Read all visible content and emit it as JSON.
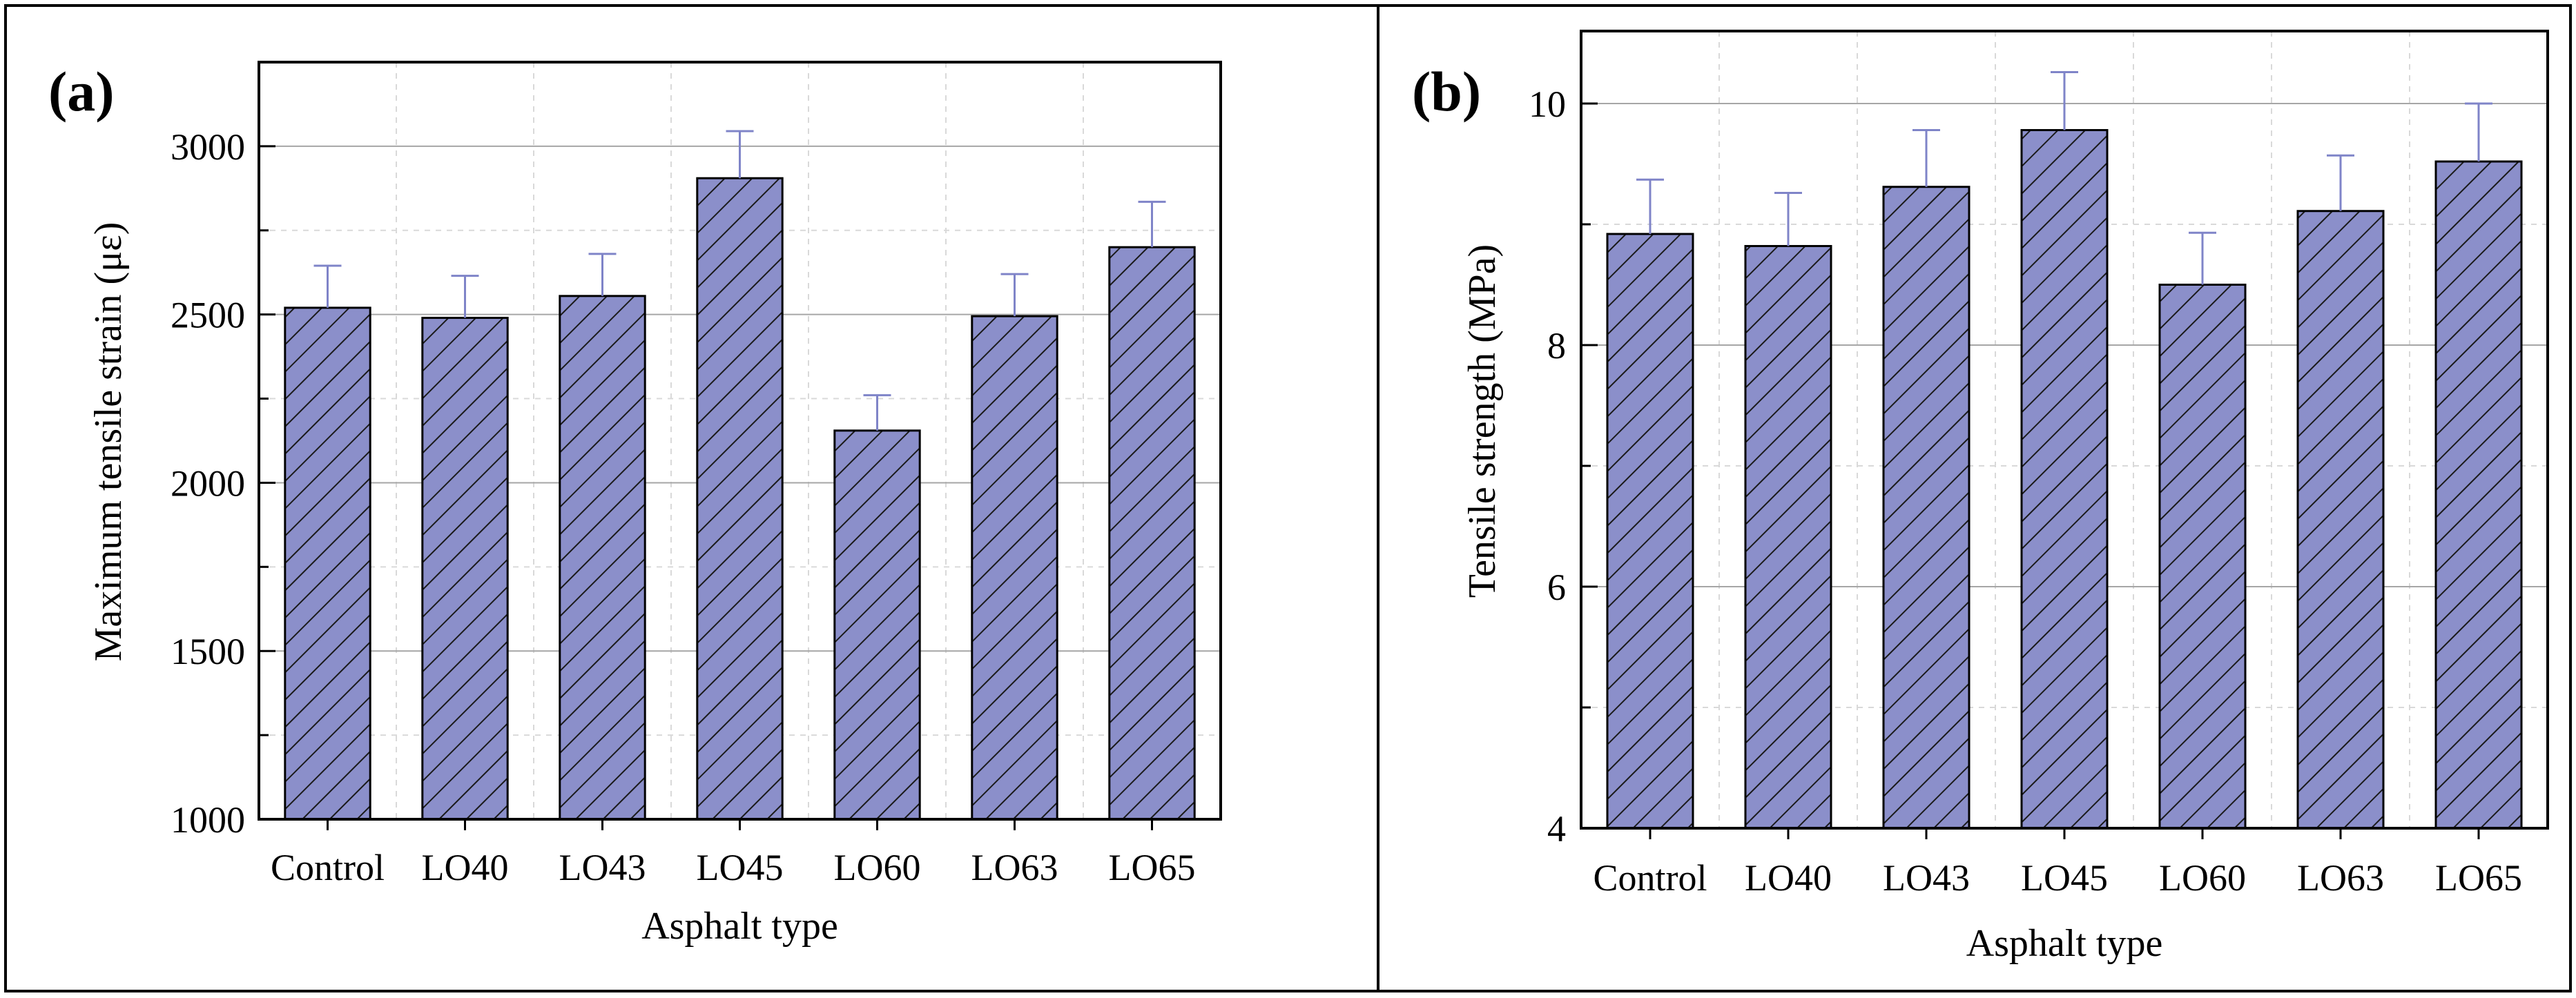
{
  "chart_data": [
    {
      "type": "bar",
      "panel_label": "(a)",
      "categories": [
        "Control",
        "LO40",
        "LO43",
        "LO45",
        "LO60",
        "LO63",
        "LO65"
      ],
      "values": [
        2520,
        2490,
        2555,
        2905,
        2155,
        2495,
        2700
      ],
      "errors": [
        125,
        125,
        125,
        140,
        105,
        125,
        135
      ],
      "xlabel": "Asphalt type",
      "ylabel": "Maximum tensile strain (με)",
      "ylim": [
        1000,
        3250
      ],
      "yticks": [
        1000,
        1500,
        2000,
        2500,
        3000
      ],
      "ytick_labels": [
        "1000",
        "1500",
        "2000",
        "2500",
        "3000"
      ],
      "bar_color": "#8b8fca",
      "hatch": "diagonal",
      "grid": true
    },
    {
      "type": "bar",
      "panel_label": "(b)",
      "categories": [
        "Control",
        "LO40",
        "LO43",
        "LO45",
        "LO60",
        "LO63",
        "LO65"
      ],
      "values": [
        8.92,
        8.82,
        9.31,
        9.78,
        8.5,
        9.11,
        9.52
      ],
      "errors": [
        0.45,
        0.44,
        0.47,
        0.48,
        0.43,
        0.46,
        0.48
      ],
      "xlabel": "Asphalt type",
      "ylabel": "Tensile strength (MPa)",
      "ylim": [
        4,
        10.6
      ],
      "yticks": [
        4,
        6,
        8,
        10
      ],
      "ytick_labels": [
        "4",
        "6",
        "8",
        "10"
      ],
      "bar_color": "#8b8fca",
      "hatch": "diagonal",
      "grid": true
    }
  ]
}
